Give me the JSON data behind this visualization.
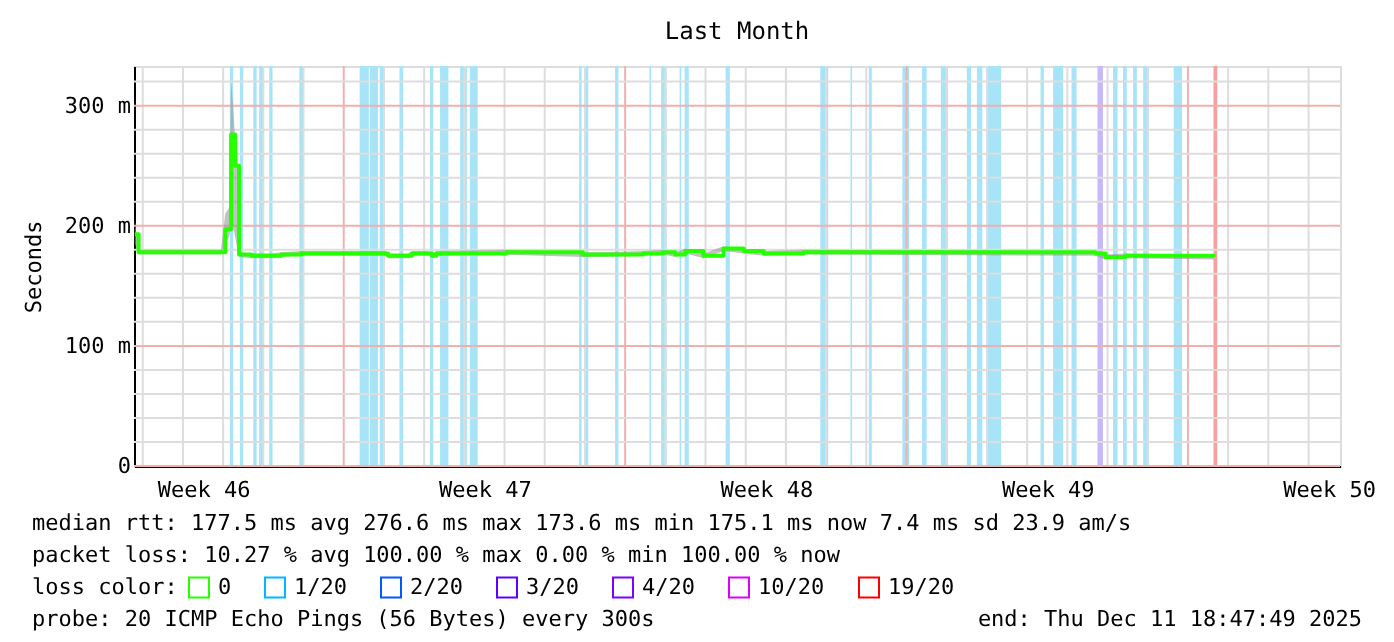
{
  "chart_data": {
    "type": "line",
    "title": "Last Month",
    "ylabel": "Seconds",
    "legend_title": "loss color:",
    "legend": "bottom",
    "grid": true,
    "xlim": [
      "2025-11-11T18:47",
      "2025-12-11T18:47"
    ],
    "xticks": [
      {
        "value": "2025-11-13T12:00",
        "label": "Week 46"
      },
      {
        "value": "2025-11-20T12:00",
        "label": "Week 47"
      },
      {
        "value": "2025-11-27T12:00",
        "label": "Week 48"
      },
      {
        "value": "2025-12-04T12:00",
        "label": "Week 49"
      },
      {
        "value": "2025-12-11T12:00",
        "label": "Week 50"
      },
      {
        "value": "2025-11-12",
        "label": null
      },
      {
        "value": "2025-11-13",
        "label": null
      },
      {
        "value": "2025-11-14",
        "label": null
      },
      {
        "value": "2025-11-15",
        "label": null
      },
      {
        "value": "2025-11-16",
        "label": null
      },
      {
        "value": "2025-11-17",
        "label": null
      },
      {
        "value": "2025-11-18",
        "label": null
      },
      {
        "value": "2025-11-19",
        "label": null
      },
      {
        "value": "2025-11-20",
        "label": null
      },
      {
        "value": "2025-11-21",
        "label": null
      },
      {
        "value": "2025-11-22",
        "label": null
      },
      {
        "value": "2025-11-23",
        "label": null
      },
      {
        "value": "2025-11-24",
        "label": null
      },
      {
        "value": "2025-11-25",
        "label": null
      },
      {
        "value": "2025-11-26",
        "label": null
      },
      {
        "value": "2025-11-27",
        "label": null
      },
      {
        "value": "2025-11-28",
        "label": null
      },
      {
        "value": "2025-11-29",
        "label": null
      },
      {
        "value": "2025-11-30",
        "label": null
      },
      {
        "value": "2025-12-01",
        "label": null
      },
      {
        "value": "2025-12-02",
        "label": null
      },
      {
        "value": "2025-12-03",
        "label": null
      },
      {
        "value": "2025-12-04",
        "label": null
      },
      {
        "value": "2025-12-05",
        "label": null
      },
      {
        "value": "2025-12-06",
        "label": null
      },
      {
        "value": "2025-12-07",
        "label": null
      },
      {
        "value": "2025-12-08",
        "label": null
      },
      {
        "value": "2025-12-09",
        "label": null
      },
      {
        "value": "2025-12-10",
        "label": null
      },
      {
        "value": "2025-12-11",
        "label": null
      }
    ],
    "ylim": [
      0,
      333
    ],
    "yticks": [
      0,
      {
        "value": 100,
        "label": "100 m"
      },
      {
        "value": 200,
        "label": "200 m"
      },
      {
        "value": 300,
        "label": "300 m"
      },
      {
        "value": 20,
        "label": null
      },
      {
        "value": 40,
        "label": null
      },
      {
        "value": 60,
        "label": null
      },
      {
        "value": 80,
        "label": null
      },
      {
        "value": 120,
        "label": null
      },
      {
        "value": 140,
        "label": null
      },
      {
        "value": 160,
        "label": null
      },
      {
        "value": 180,
        "label": null
      },
      {
        "value": 220,
        "label": null
      },
      {
        "value": 240,
        "label": null
      },
      {
        "value": 260,
        "label": null
      },
      {
        "value": 280,
        "label": null
      },
      {
        "value": 320,
        "label": null
      }
    ],
    "series": [
      {
        "name": "0",
        "color": "#26ff00",
        "x": [
          "2025-11-11T19:15",
          "2025-11-11T21:30",
          "2025-11-13T22:45",
          "2025-11-14T01:15",
          "2025-11-14T03:30",
          "2025-11-14T04:45",
          "2025-11-14T06:00",
          "2025-11-14T07:15",
          "2025-11-14T08:30",
          "2025-11-14T09:30",
          "2025-11-14T17:00",
          "2025-11-15T04:45",
          "2025-11-15T10:45",
          "2025-11-15T22:45",
          "2025-11-18T01:15",
          "2025-11-18T02:30",
          "2025-11-18T14:30",
          "2025-11-18T16:45",
          "2025-11-19T02:30",
          "2025-11-19T04:45",
          "2025-11-19T07:15",
          "2025-11-21T01:15",
          "2025-11-22T22:45",
          "2025-11-23T10:45",
          "2025-11-24T10:45",
          "2025-11-24T22:45",
          "2025-11-25T06:00",
          "2025-11-25T12:00",
          "2025-11-25T22:45",
          "2025-11-26T10:45",
          "2025-11-26T22:45",
          "2025-11-27T10:45",
          "2025-11-28T10:45",
          "2025-12-05T16:45",
          "2025-12-05T22:45",
          "2025-12-06T10:45",
          "2025-12-08T15:30"
        ],
        "values": [
          193,
          178,
          178,
          197,
          197,
          276,
          276,
          250,
          250,
          176,
          175,
          175,
          176,
          177,
          177,
          175,
          175,
          177,
          177,
          175,
          177,
          178,
          176,
          176,
          177,
          178,
          176,
          179,
          175,
          181,
          179,
          177,
          178,
          177,
          174,
          175,
          174
        ],
        "upper": [
          205,
          180,
          180,
          210,
          215,
          320,
          300,
          270,
          260,
          178,
          177,
          177,
          178,
          179,
          179,
          177,
          177,
          179,
          179,
          177,
          179,
          180,
          178,
          178,
          179,
          180,
          178,
          181,
          177,
          183,
          181,
          179,
          180,
          179,
          176,
          177,
          176
        ],
        "lower": [
          185,
          176,
          176,
          185,
          190,
          200,
          200,
          190,
          180,
          174,
          173,
          173,
          174,
          175,
          175,
          173,
          173,
          175,
          175,
          173,
          175,
          176,
          174,
          174,
          175,
          176,
          174,
          177,
          173,
          179,
          177,
          175,
          176,
          175,
          172,
          173,
          172
        ]
      },
      {
        "name": "1/20",
        "color": "#00b8ff"
      },
      {
        "name": "2/20",
        "color": "#0059ff"
      },
      {
        "name": "3/20",
        "color": "#5e00ff"
      },
      {
        "name": "4/20",
        "color": "#7e00ff"
      },
      {
        "name": "10/20",
        "color": "#dd00ff"
      },
      {
        "name": "19/20",
        "color": "#ff0000"
      }
    ],
    "bands": [
      {
        "axis": "x",
        "from": "2025-11-14T04:00",
        "to": "2025-11-14T06:00",
        "color": "#a8e4f8"
      },
      {
        "axis": "x",
        "from": "2025-11-14T10:00",
        "to": "2025-11-14T12:00",
        "color": "#a8e4f8"
      },
      {
        "axis": "x",
        "from": "2025-11-14T18:00",
        "to": "2025-11-14T20:00",
        "color": "#a8e4f8"
      },
      {
        "axis": "x",
        "from": "2025-11-14T21:30",
        "to": "2025-11-15T00:00",
        "color": "#a8e4f8"
      },
      {
        "axis": "x",
        "from": "2025-11-15T03:30",
        "to": "2025-11-15T05:30",
        "color": "#a8e4f8"
      },
      {
        "axis": "x",
        "from": "2025-11-15T21:30",
        "to": "2025-11-16T00:00",
        "color": "#a8e4f8"
      },
      {
        "axis": "x",
        "from": "2025-11-17T09:30",
        "to": "2025-11-17T15:00",
        "color": "#a8e4f8"
      },
      {
        "axis": "x",
        "from": "2025-11-17T15:30",
        "to": "2025-11-17T20:30",
        "color": "#a8e4f8"
      },
      {
        "axis": "x",
        "from": "2025-11-17T21:30",
        "to": "2025-11-18T00:30",
        "color": "#a8e4f8"
      },
      {
        "axis": "x",
        "from": "2025-11-18T09:15",
        "to": "2025-11-18T11:30",
        "color": "#a8e4f8"
      },
      {
        "axis": "x",
        "from": "2025-11-19T03:30",
        "to": "2025-11-19T05:30",
        "color": "#a8e4f8"
      },
      {
        "axis": "x",
        "from": "2025-11-19T09:30",
        "to": "2025-11-19T14:30",
        "color": "#a8e4f8"
      },
      {
        "axis": "x",
        "from": "2025-11-19T21:30",
        "to": "2025-11-20T01:30",
        "color": "#a8e4f8"
      },
      {
        "axis": "x",
        "from": "2025-11-20T03:15",
        "to": "2025-11-20T08:00",
        "color": "#a8e4f8"
      },
      {
        "axis": "x",
        "from": "2025-11-22T20:30",
        "to": "2025-11-22T22:00",
        "color": "#a8e4f8"
      },
      {
        "axis": "x",
        "from": "2025-11-22T23:30",
        "to": "2025-11-23T02:00",
        "color": "#a8e4f8"
      },
      {
        "axis": "x",
        "from": "2025-11-23T18:00",
        "to": "2025-11-23T20:00",
        "color": "#a8e4f8"
      },
      {
        "axis": "x",
        "from": "2025-11-24T14:30",
        "to": "2025-11-24T15:30",
        "color": "#a8e4f8"
      },
      {
        "axis": "x",
        "from": "2025-11-24T21:30",
        "to": "2025-11-25T00:45",
        "color": "#a8e4f8"
      },
      {
        "axis": "x",
        "from": "2025-11-25T08:30",
        "to": "2025-11-25T09:30",
        "color": "#a8e4f8"
      },
      {
        "axis": "x",
        "from": "2025-11-25T11:30",
        "to": "2025-11-25T14:00",
        "color": "#a8e4f8"
      },
      {
        "axis": "x",
        "from": "2025-11-26T12:00",
        "to": "2025-11-26T14:30",
        "color": "#a8e4f8"
      },
      {
        "axis": "x",
        "from": "2025-11-28T20:30",
        "to": "2025-11-29T01:15",
        "color": "#a8e4f8"
      },
      {
        "axis": "x",
        "from": "2025-11-29T14:30",
        "to": "2025-11-29T15:30",
        "color": "#a8e4f8"
      },
      {
        "axis": "x",
        "from": "2025-11-30T01:30",
        "to": "2025-11-30T03:15",
        "color": "#a8e4f8"
      },
      {
        "axis": "x",
        "from": "2025-11-30T21:30",
        "to": "2025-12-01T01:30",
        "color": "#a8e4f8"
      },
      {
        "axis": "x",
        "from": "2025-12-01T09:15",
        "to": "2025-12-01T12:00",
        "color": "#a8e4f8"
      },
      {
        "axis": "x",
        "from": "2025-12-01T20:30",
        "to": "2025-12-02T00:45",
        "color": "#a8e4f8"
      },
      {
        "axis": "x",
        "from": "2025-12-02T12:00",
        "to": "2025-12-02T14:30",
        "color": "#a8e4f8"
      },
      {
        "axis": "x",
        "from": "2025-12-02T18:00",
        "to": "2025-12-02T21:15",
        "color": "#a8e4f8"
      },
      {
        "axis": "x",
        "from": "2025-12-03T00:00",
        "to": "2025-12-03T08:30",
        "color": "#a8e4f8"
      },
      {
        "axis": "x",
        "from": "2025-12-04T08:00",
        "to": "2025-12-04T10:00",
        "color": "#a8e4f8"
      },
      {
        "axis": "x",
        "from": "2025-12-04T15:30",
        "to": "2025-12-04T21:30",
        "color": "#a8e4f8"
      },
      {
        "axis": "x",
        "from": "2025-12-05T02:30",
        "to": "2025-12-05T05:30",
        "color": "#a8e4f8"
      },
      {
        "axis": "x",
        "from": "2025-12-05T18:00",
        "to": "2025-12-05T21:15",
        "color": "#c8b8fa"
      },
      {
        "axis": "x",
        "from": "2025-12-06T03:15",
        "to": "2025-12-06T06:00",
        "color": "#a8e4f8"
      },
      {
        "axis": "x",
        "from": "2025-12-06T09:15",
        "to": "2025-12-06T11:30",
        "color": "#a8e4f8"
      },
      {
        "axis": "x",
        "from": "2025-12-06T15:15",
        "to": "2025-12-06T17:30",
        "color": "#a8e4f8"
      },
      {
        "axis": "x",
        "from": "2025-12-06T21:15",
        "to": "2025-12-07T00:45",
        "color": "#a8e4f8"
      },
      {
        "axis": "x",
        "from": "2025-12-07T15:30",
        "to": "2025-12-07T20:30",
        "color": "#a8e4f8"
      },
      {
        "axis": "x",
        "from": "2025-12-08T15:15",
        "to": "2025-12-08T17:30",
        "color": "#f8a0a0"
      }
    ],
    "annotations": [
      "median rtt:  177.5 ms avg  276.6 ms max  173.6 ms min  175.1 ms now  7.4 ms sd  23.9   am/s",
      "packet loss: 10.27 % avg  100.00 % max  0.00 % min  100.00 % now",
      "probe:       20 ICMP Echo Pings (56 Bytes) every 300s",
      "end: Thu Dec 11 18:47:49 2025"
    ]
  }
}
